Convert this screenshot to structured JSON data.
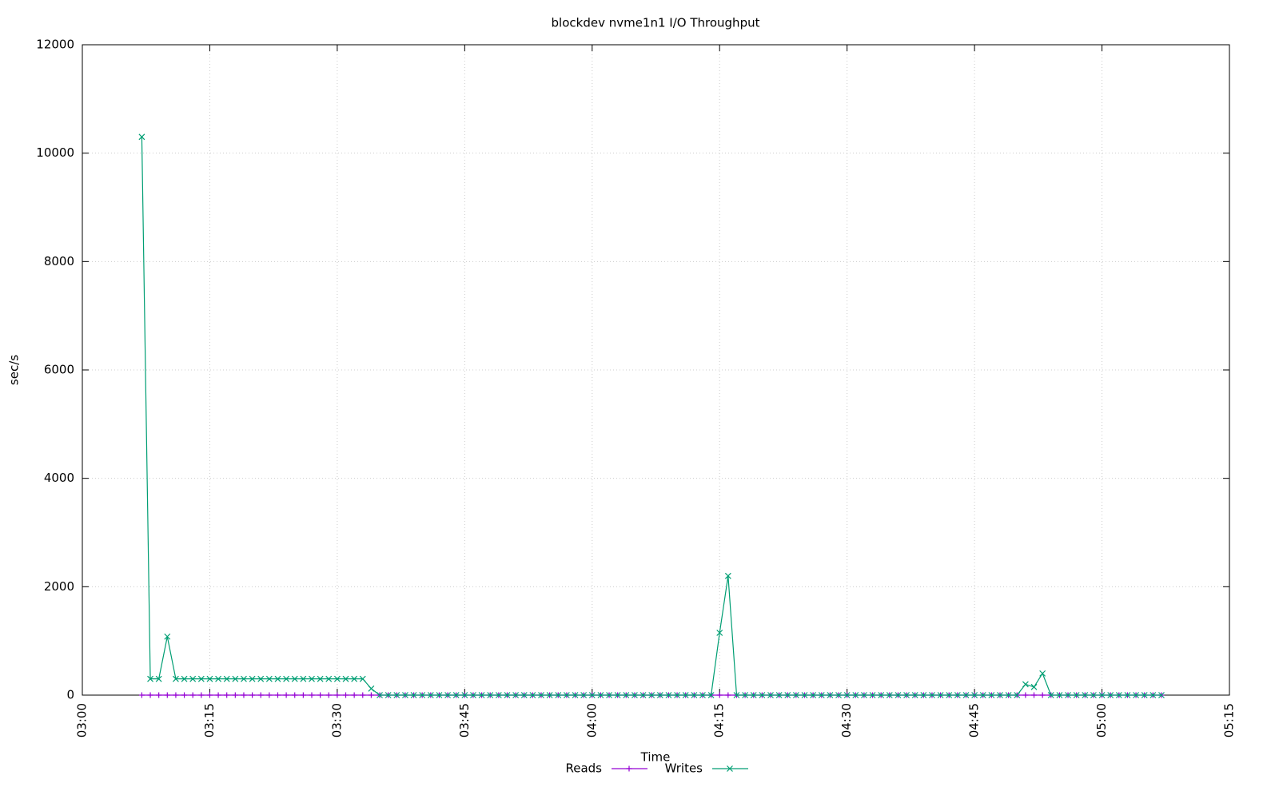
{
  "chart_data": {
    "type": "line",
    "title": "blockdev nvme1n1 I/O Throughput",
    "x_label": "Time",
    "y_label": "sec/s",
    "x": [
      "03:07",
      "03:08",
      "03:09",
      "03:10",
      "03:11",
      "03:12",
      "03:13",
      "03:14",
      "03:15",
      "03:16",
      "03:17",
      "03:18",
      "03:19",
      "03:20",
      "03:21",
      "03:22",
      "03:23",
      "03:24",
      "03:25",
      "03:26",
      "03:27",
      "03:28",
      "03:29",
      "03:30",
      "03:31",
      "03:32",
      "03:33",
      "03:34",
      "03:35",
      "03:36",
      "03:37",
      "03:38",
      "03:39",
      "03:40",
      "03:41",
      "03:42",
      "03:43",
      "03:44",
      "03:45",
      "03:46",
      "03:47",
      "03:48",
      "03:49",
      "03:50",
      "03:51",
      "03:52",
      "03:53",
      "03:54",
      "03:55",
      "03:56",
      "03:57",
      "03:58",
      "03:59",
      "04:00",
      "04:01",
      "04:02",
      "04:03",
      "04:04",
      "04:05",
      "04:06",
      "04:07",
      "04:08",
      "04:09",
      "04:10",
      "04:11",
      "04:12",
      "04:13",
      "04:14",
      "04:15",
      "04:16",
      "04:17",
      "04:18",
      "04:19",
      "04:20",
      "04:21",
      "04:22",
      "04:23",
      "04:24",
      "04:25",
      "04:26",
      "04:27",
      "04:28",
      "04:29",
      "04:30",
      "04:31",
      "04:32",
      "04:33",
      "04:34",
      "04:35",
      "04:36",
      "04:37",
      "04:38",
      "04:39",
      "04:40",
      "04:41",
      "04:42",
      "04:43",
      "04:44",
      "04:45",
      "04:46",
      "04:47",
      "04:48",
      "04:49",
      "04:50",
      "04:51",
      "04:52",
      "04:53",
      "04:54",
      "04:55",
      "04:56",
      "04:57",
      "04:58",
      "04:59",
      "05:00",
      "05:01",
      "05:02",
      "05:03",
      "05:04",
      "05:05",
      "05:06",
      "05:07"
    ],
    "series": [
      {
        "name": "Reads",
        "color": "#9400d3",
        "marker": "+",
        "values": [
          0,
          0,
          0,
          0,
          0,
          0,
          0,
          0,
          0,
          0,
          0,
          0,
          0,
          0,
          0,
          0,
          0,
          0,
          0,
          0,
          0,
          0,
          0,
          0,
          0,
          0,
          0,
          0,
          0,
          0,
          0,
          0,
          0,
          0,
          0,
          0,
          0,
          0,
          0,
          0,
          0,
          0,
          0,
          0,
          0,
          0,
          0,
          0,
          0,
          0,
          0,
          0,
          0,
          0,
          0,
          0,
          0,
          0,
          0,
          0,
          0,
          0,
          0,
          0,
          0,
          0,
          0,
          0,
          0,
          0,
          0,
          0,
          0,
          0,
          0,
          0,
          0,
          0,
          0,
          0,
          0,
          0,
          0,
          0,
          0,
          0,
          0,
          0,
          0,
          0,
          0,
          0,
          0,
          0,
          0,
          0,
          0,
          0,
          0,
          0,
          0,
          0,
          0,
          0,
          0,
          0,
          0,
          0,
          0,
          0,
          0,
          0,
          0,
          0,
          0,
          0,
          0,
          0,
          0,
          0,
          0
        ]
      },
      {
        "name": "Writes",
        "color": "#009e73",
        "marker": "x",
        "values": [
          10300,
          300,
          300,
          1080,
          300,
          300,
          300,
          300,
          300,
          300,
          300,
          300,
          300,
          300,
          300,
          300,
          300,
          300,
          300,
          300,
          300,
          300,
          300,
          300,
          300,
          300,
          300,
          120,
          0,
          0,
          0,
          0,
          0,
          0,
          0,
          0,
          0,
          0,
          0,
          0,
          0,
          0,
          0,
          0,
          0,
          0,
          0,
          0,
          0,
          0,
          0,
          0,
          0,
          0,
          0,
          0,
          0,
          0,
          0,
          0,
          0,
          0,
          0,
          0,
          0,
          0,
          0,
          0,
          1150,
          2200,
          0,
          0,
          0,
          0,
          0,
          0,
          0,
          0,
          0,
          0,
          0,
          0,
          0,
          0,
          0,
          0,
          0,
          0,
          0,
          0,
          0,
          0,
          0,
          0,
          0,
          0,
          0,
          0,
          0,
          0,
          0,
          0,
          0,
          0,
          200,
          150,
          400,
          0,
          0,
          0,
          0,
          0,
          0,
          0,
          0,
          0,
          0,
          0,
          0,
          0,
          0
        ]
      }
    ],
    "xlim": [
      "03:00",
      "05:15"
    ],
    "xticks": [
      "03:00",
      "03:15",
      "03:30",
      "03:45",
      "04:00",
      "04:15",
      "04:30",
      "04:45",
      "05:00",
      "05:15"
    ],
    "ylim": [
      0,
      12000
    ],
    "yticks": [
      0,
      2000,
      4000,
      6000,
      8000,
      10000,
      12000
    ],
    "grid": true,
    "legend": "bottom"
  }
}
